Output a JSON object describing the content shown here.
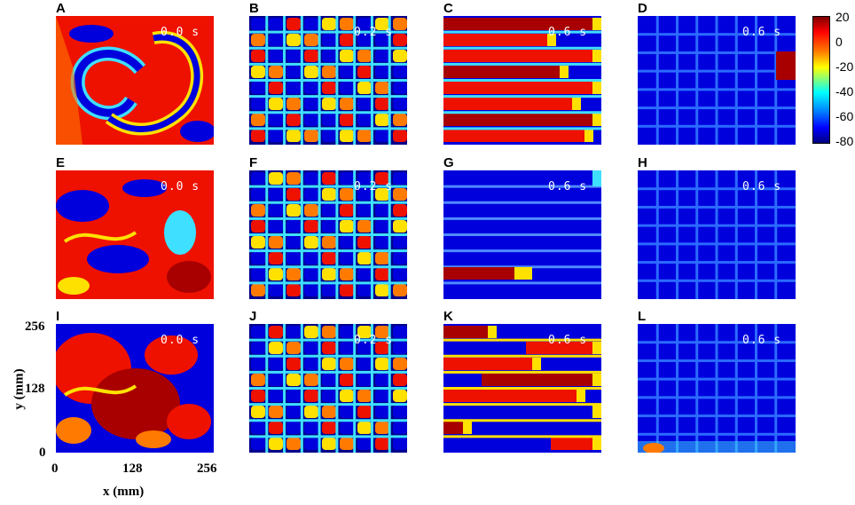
{
  "panels": [
    {
      "label": "A",
      "time": "0.0 s",
      "variant": "spiral"
    },
    {
      "label": "B",
      "time": "0.2 s",
      "variant": "grid-chaos"
    },
    {
      "label": "C",
      "time": "0.6 s",
      "variant": "stripes-red"
    },
    {
      "label": "D",
      "time": "0.6 s",
      "variant": "grid-quiet-block"
    },
    {
      "label": "E",
      "time": "0.0 s",
      "variant": "turbulent"
    },
    {
      "label": "F",
      "time": "0.2 s",
      "variant": "grid-chaos-2"
    },
    {
      "label": "G",
      "time": "0.6 s",
      "variant": "stripes-blue"
    },
    {
      "label": "H",
      "time": "0.6 s",
      "variant": "grid-quiet"
    },
    {
      "label": "I",
      "time": "0.0 s",
      "variant": "blobs"
    },
    {
      "label": "J",
      "time": "0.2 s",
      "variant": "grid-chaos-3"
    },
    {
      "label": "K",
      "time": "0.6 s",
      "variant": "stripes-mixed"
    },
    {
      "label": "L",
      "time": "0.6 s",
      "variant": "grid-quiet-bottom"
    }
  ],
  "axes": {
    "xlabel": "x  (mm)",
    "ylabel": "y  (mm)",
    "xticks": [
      "0",
      "128",
      "256"
    ],
    "yticks": [
      "256",
      "128",
      "0"
    ]
  },
  "colorbar": {
    "ticks": [
      "20",
      "0",
      "-20",
      "-40",
      "-60",
      "-80"
    ],
    "colors": {
      "high": "#800000",
      "mid": "#ffff00",
      "low": "#000080"
    }
  }
}
